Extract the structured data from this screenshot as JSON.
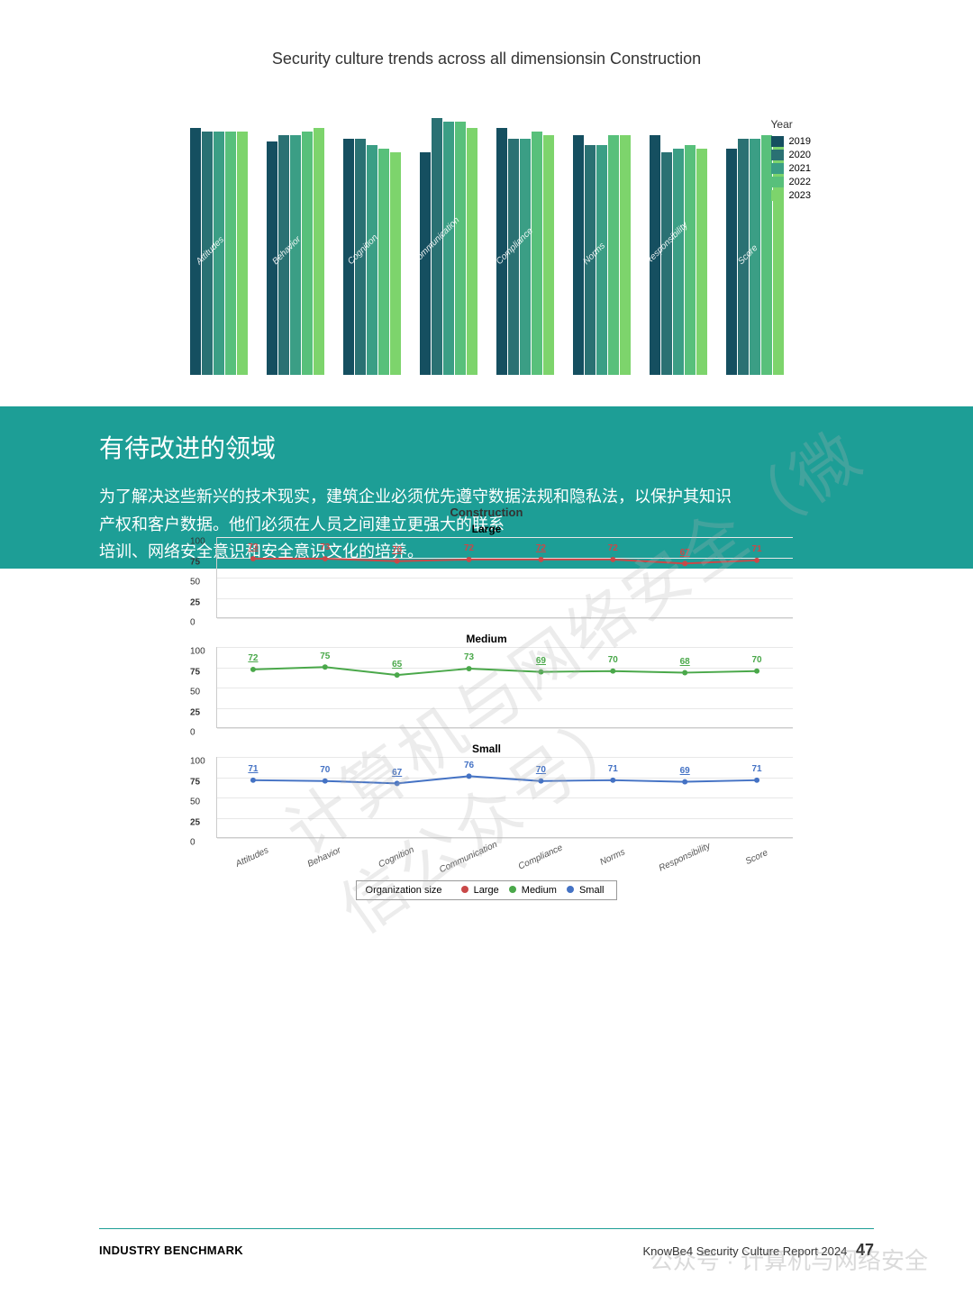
{
  "chart1": {
    "title": "Security culture trends across all dimensionsin Construction",
    "categories": [
      "Attitudes",
      "Behavior",
      "Cognition",
      "Communication",
      "Compliance",
      "Norms",
      "Responsibility",
      "Score"
    ],
    "legend_title": "Year",
    "legend_items": [
      "2019",
      "2020",
      "2021",
      "2022",
      "2023"
    ],
    "series_colors": [
      "#154f60",
      "#2a7173",
      "#3b9e85",
      "#58c07b",
      "#7dd46c"
    ],
    "data": [
      [
        73,
        72,
        72,
        72,
        72
      ],
      [
        69,
        71,
        71,
        72,
        73
      ],
      [
        70,
        70,
        68,
        67,
        66
      ],
      [
        66,
        76,
        75,
        75,
        73
      ],
      [
        73,
        70,
        70,
        72,
        71
      ],
      [
        71,
        68,
        68,
        71,
        71
      ],
      [
        71,
        66,
        67,
        68,
        67
      ],
      [
        67,
        70,
        70,
        71,
        70
      ]
    ]
  },
  "teal": {
    "heading": "有待改进的领域",
    "body_line1": "为了解决这些新兴的技术现实，建筑企业必须优先遵守数据法规和隐私法，以保护其知识",
    "body_line2": "产权和客户数据。他们必须在人员之间建立更强大的联系",
    "body_line3": "培训、网络安全意识和安全意识文化的培养。"
  },
  "line_charts": {
    "title": "Construction",
    "categories": [
      "Attitudes",
      "Behavior",
      "Cognition",
      "Communication",
      "Compliance",
      "Norms",
      "Responsibility",
      "Score"
    ],
    "yticks": [
      0,
      25,
      50,
      75,
      100
    ],
    "ylim": [
      0,
      100
    ],
    "panels": [
      {
        "label": "Large",
        "color": "#c94848",
        "values": [
          73,
          73,
          70,
          72,
          72,
          72,
          67,
          71
        ]
      },
      {
        "label": "Medium",
        "color": "#4aa84a",
        "values": [
          72,
          75,
          65,
          73,
          69,
          70,
          68,
          70
        ]
      },
      {
        "label": "Small",
        "color": "#4472c4",
        "values": [
          71,
          70,
          67,
          76,
          70,
          71,
          69,
          71
        ]
      }
    ],
    "org_legend_title": "Organization size",
    "org_legend_items": [
      {
        "label": "Large",
        "color": "#c94848"
      },
      {
        "label": "Medium",
        "color": "#4aa84a"
      },
      {
        "label": "Small",
        "color": "#4472c4"
      }
    ]
  },
  "footer": {
    "left": "INDUSTRY BENCHMARK",
    "right_text": "KnowBe4 Security Culture Report 2024",
    "page": "47"
  },
  "watermarks": {
    "main": "计算机与网络安全（微信公众号）",
    "bottom": "公众号 · 计算机与网络安全"
  }
}
